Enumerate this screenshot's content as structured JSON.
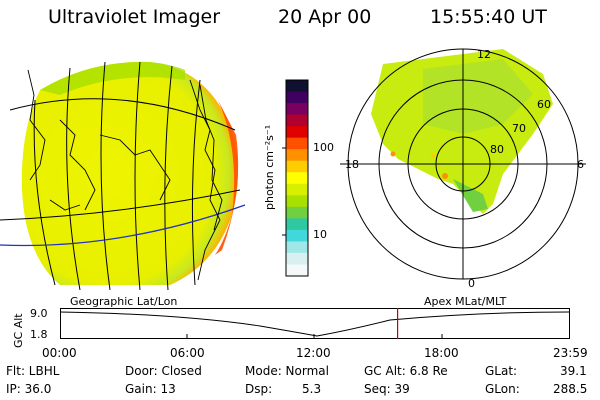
{
  "header": {
    "instrument": "Ultraviolet Imager",
    "date": "20 Apr 00",
    "time": "15:55:40 UT"
  },
  "colorbar": {
    "unit_label": "photon cm⁻²s⁻¹",
    "ticks": [
      "100",
      "10"
    ],
    "colors": [
      "#101030",
      "#400060",
      "#7a0060",
      "#b00030",
      "#e00000",
      "#ff5000",
      "#ff9000",
      "#ffcc00",
      "#ffff00",
      "#d8f000",
      "#a8e000",
      "#70d040",
      "#30c8a0",
      "#40d8d8",
      "#a0e8e8",
      "#d8f0f0",
      "#f4f8f8"
    ]
  },
  "polar": {
    "mlt_labels": {
      "top": "12",
      "left": "18",
      "right": "6",
      "bottom": "0"
    },
    "lat_labels": [
      "60",
      "70",
      "80"
    ]
  },
  "timeline": {
    "left_label": "Geographic Lat/Lon",
    "right_label": "Apex MLat/MLT",
    "axis_title": "GC Alt",
    "y_ticks": [
      "9.0",
      "1.8"
    ],
    "x_ticks": [
      "00:00",
      "06:00",
      "12:00",
      "18:00",
      "23:59"
    ],
    "current_marker_time": "15:55",
    "marker_color": "#cc0000"
  },
  "info": {
    "flt": "Flt: LBHL",
    "ip": "IP: 36.0",
    "door": "Door: Closed",
    "gain": "Gain: 13",
    "mode": "Mode: Normal",
    "dsp": "Dsp:",
    "dsp_val": "5.3",
    "gcalt": "GC Alt: 6.8 Re",
    "seq": "Seq: 39",
    "glat": "GLat:",
    "glat_val": "39.1",
    "glon": "GLon:",
    "glon_val": "288.5"
  }
}
